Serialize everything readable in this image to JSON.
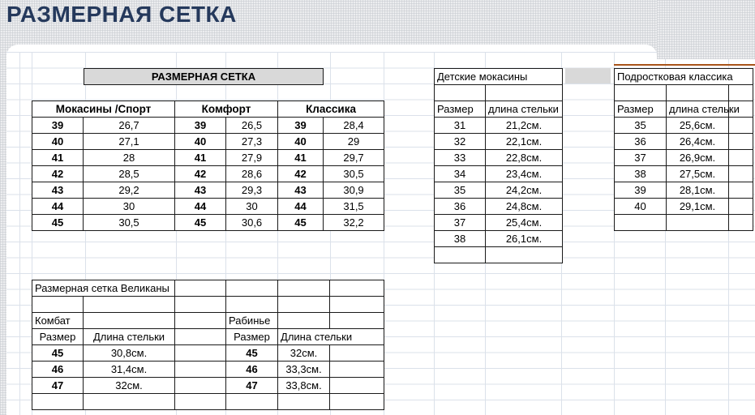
{
  "page": {
    "title": "РАЗМЕРНАЯ СЕТКА"
  },
  "sheet": {
    "title_cell": "РАЗМЕРНАЯ СЕТКА",
    "main_table": {
      "sections": [
        {
          "label": "Мокасины /Спорт",
          "rows": [
            [
              "39",
              "26,7"
            ],
            [
              "40",
              "27,1"
            ],
            [
              "41",
              "28"
            ],
            [
              "42",
              "28,5"
            ],
            [
              "43",
              "29,2"
            ],
            [
              "44",
              "30"
            ],
            [
              "45",
              "30,5"
            ]
          ]
        },
        {
          "label": "Комфорт",
          "rows": [
            [
              "39",
              "26,5"
            ],
            [
              "40",
              "27,3"
            ],
            [
              "41",
              "27,9"
            ],
            [
              "42",
              "28,6"
            ],
            [
              "43",
              "29,3"
            ],
            [
              "44",
              "30"
            ],
            [
              "45",
              "30,6"
            ]
          ]
        },
        {
          "label": "Классика",
          "rows": [
            [
              "39",
              "28,4"
            ],
            [
              "40",
              "29"
            ],
            [
              "41",
              "29,7"
            ],
            [
              "42",
              "30,5"
            ],
            [
              "43",
              "30,9"
            ],
            [
              "44",
              "31,5"
            ],
            [
              "45",
              "32,2"
            ]
          ]
        }
      ]
    },
    "kids_table": {
      "title": "Детские мокасины",
      "col_size": "Размер",
      "col_length": "длина стельки",
      "rows": [
        [
          "31",
          "21,2см."
        ],
        [
          "32",
          "22,1см."
        ],
        [
          "33",
          "22,8см."
        ],
        [
          "34",
          "23,4см."
        ],
        [
          "35",
          "24,2см."
        ],
        [
          "36",
          "24,8см."
        ],
        [
          "37",
          "25,4см."
        ],
        [
          "38",
          "26,1см."
        ]
      ]
    },
    "teen_table": {
      "title": "Подростковая классика",
      "col_size": "Размер",
      "col_length": "длина стельки",
      "rows": [
        [
          "35",
          "25,6см."
        ],
        [
          "36",
          "26,4см."
        ],
        [
          "37",
          "26,9см."
        ],
        [
          "38",
          "27,5см."
        ],
        [
          "39",
          "28,1см."
        ],
        [
          "40",
          "29,1см."
        ]
      ]
    },
    "giants_table": {
      "title": "Размерная сетка Великаны",
      "kombat": {
        "label": "Комбат",
        "col_size": "Размер",
        "col_length": "Длина стельки",
        "rows": [
          [
            "45",
            "30,8см."
          ],
          [
            "46",
            "31,4см."
          ],
          [
            "47",
            "32см."
          ]
        ]
      },
      "rabinje": {
        "label": "Рабинье",
        "col_size": "Размер",
        "col_length": "Длина стельки",
        "rows": [
          [
            "45",
            "32см."
          ],
          [
            "46",
            "33,3см."
          ],
          [
            "47",
            "33,8см."
          ]
        ]
      }
    },
    "colors": {
      "page_title": "#25395c",
      "cell_border": "#1a1a1a",
      "gridline": "#dbe1ea",
      "title_cell_bg": "#d9d9d9",
      "moccasins_sport_bg": "#ebf1de",
      "comfort_bg": "#fde9d9",
      "classic_bg": "#daeef3",
      "kids_size_bg": "#c3e2f0",
      "kids_length_bg": "#c4d79b",
      "teen_title_bg": "#fde9d9",
      "teen_size_bg": "#f2dcdb",
      "teen_length_bg": "#ccc0da",
      "giants_title_bg": "#e26b0a",
      "group_header_bg": "#95b3d7",
      "kombat_size_bg": "#b1a0c7",
      "length_light_bg": "#dce6f1",
      "rabinje_size_bg": "#fabf8f",
      "rabinje_length_bg": "#77933c",
      "accent_line": "#a9541a"
    }
  }
}
